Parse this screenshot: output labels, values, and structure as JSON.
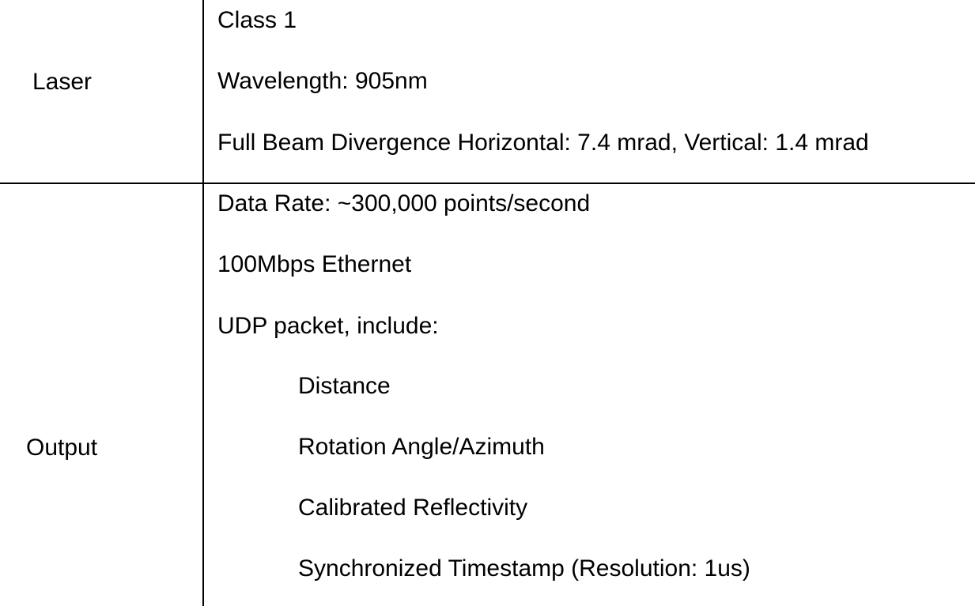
{
  "table": {
    "rows": [
      {
        "label": "Laser",
        "lines": [
          "Class 1",
          "Wavelength: 905nm",
          "Full Beam Divergence Horizontal: 7.4 mrad, Vertical: 1.4 mrad"
        ]
      },
      {
        "label": "Output",
        "lines": [
          "Data Rate: ~300,000 points/second",
          "100Mbps Ethernet",
          "UDP packet, include:"
        ],
        "sub_lines": [
          "Distance",
          "Rotation Angle/Azimuth",
          "Calibrated Reflectivity",
          "Synchronized Timestamp (Resolution: 1us)"
        ]
      }
    ]
  }
}
